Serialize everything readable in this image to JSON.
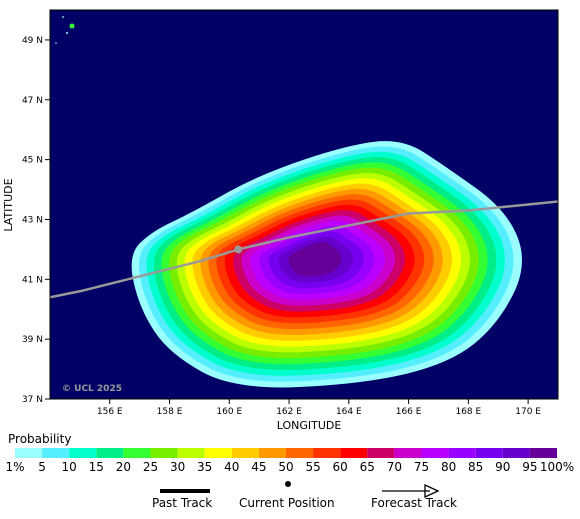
{
  "map": {
    "latitude_label": "LATITUDE",
    "longitude_label": "LONGITUDE",
    "lat_ticks": [
      "49 N",
      "47 N",
      "45 N",
      "43 N",
      "41 N",
      "39 N",
      "37 N"
    ],
    "lat_values": [
      49,
      47,
      45,
      43,
      41,
      39,
      37
    ],
    "lon_ticks": [
      "156 E",
      "158 E",
      "160 E",
      "162 E",
      "164 E",
      "166 E",
      "168 E",
      "170 E"
    ],
    "lon_values": [
      156,
      158,
      160,
      162,
      164,
      166,
      168,
      170
    ],
    "lon_range": [
      154,
      171
    ],
    "lat_range": [
      37,
      50
    ],
    "copyright": "© UCL 2025",
    "ocean_color": "#000066",
    "current_position": {
      "lon": 160.3,
      "lat": 42.0
    },
    "track": [
      {
        "lon": 154.0,
        "lat": 40.4
      },
      {
        "lon": 155.0,
        "lat": 40.6
      },
      {
        "lon": 157.0,
        "lat": 41.1
      },
      {
        "lon": 159.0,
        "lat": 41.6
      },
      {
        "lon": 160.3,
        "lat": 42.0
      },
      {
        "lon": 162.0,
        "lat": 42.4
      },
      {
        "lon": 164.0,
        "lat": 42.8
      },
      {
        "lon": 166.0,
        "lat": 43.2
      },
      {
        "lon": 168.0,
        "lat": 43.3
      },
      {
        "lon": 170.0,
        "lat": 43.5
      },
      {
        "lon": 171.0,
        "lat": 43.6
      }
    ]
  },
  "legend": {
    "title": "Probability",
    "labels": [
      "1%",
      "5",
      "10",
      "15",
      "20",
      "25",
      "30",
      "35",
      "40",
      "45",
      "50",
      "55",
      "60",
      "65",
      "70",
      "75",
      "80",
      "85",
      "90",
      "95",
      "100%"
    ],
    "colors": [
      "#99ffff",
      "#55eeff",
      "#00ffcc",
      "#00ee88",
      "#33ff33",
      "#77ee00",
      "#bbff00",
      "#ffff00",
      "#ffcc00",
      "#ff9900",
      "#ff6600",
      "#ff3300",
      "#ff0000",
      "#cc0066",
      "#cc00cc",
      "#bb00ff",
      "#9900ff",
      "#7700ee",
      "#6600cc",
      "#660099"
    ]
  },
  "key": {
    "past_track": "Past Track",
    "current_position": "Current Position",
    "forecast_track": "Forecast Track"
  }
}
